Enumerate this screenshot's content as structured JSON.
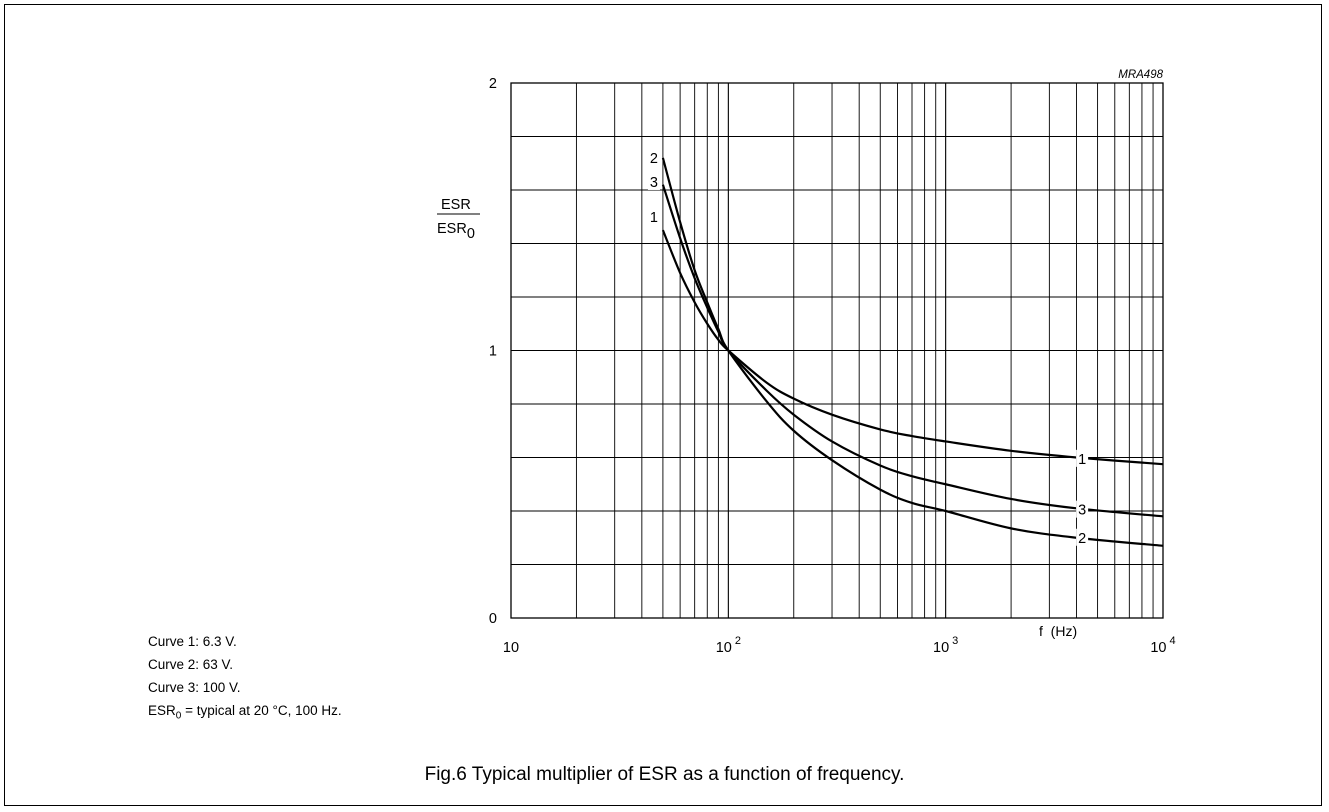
{
  "chart_data": {
    "type": "line",
    "figure_code": "MRA498",
    "title": "",
    "xlabel": "f  (Hz)",
    "ylabel": {
      "numerator": "ESR",
      "denominator": "ESR",
      "denominator_subscript": "0"
    },
    "x_scale": "log",
    "xlim": [
      10,
      10000
    ],
    "ylim": [
      0,
      2
    ],
    "grid": true,
    "x_ticks": [
      {
        "value": 10,
        "base": "10",
        "exp": ""
      },
      {
        "value": 100,
        "base": "10",
        "exp": "2"
      },
      {
        "value": 1000,
        "base": "10",
        "exp": "3"
      },
      {
        "value": 10000,
        "base": "10",
        "exp": "4"
      }
    ],
    "y_ticks": [
      {
        "value": 0,
        "label": "0"
      },
      {
        "value": 1,
        "label": "1"
      },
      {
        "value": 2,
        "label": "2"
      }
    ],
    "series": [
      {
        "name": "1",
        "x": [
          50,
          60,
          70,
          80,
          90,
          100,
          150,
          200,
          300,
          500,
          700,
          1000,
          2000,
          4000,
          10000
        ],
        "y": [
          1.45,
          1.29,
          1.18,
          1.1,
          1.04,
          1.0,
          0.88,
          0.82,
          0.76,
          0.705,
          0.68,
          0.66,
          0.625,
          0.6,
          0.575
        ],
        "label_positions": [
          {
            "x": 45,
            "y": 1.5
          },
          {
            "x": 4200,
            "y": 0.595
          }
        ]
      },
      {
        "name": "2",
        "x": [
          50,
          60,
          70,
          80,
          90,
          100,
          150,
          200,
          300,
          500,
          700,
          1000,
          2000,
          4000,
          10000
        ],
        "y": [
          1.72,
          1.48,
          1.3,
          1.18,
          1.08,
          1.0,
          0.81,
          0.7,
          0.59,
          0.48,
          0.43,
          0.4,
          0.335,
          0.3,
          0.27
        ],
        "label_positions": [
          {
            "x": 45,
            "y": 1.72
          },
          {
            "x": 4200,
            "y": 0.3
          }
        ]
      },
      {
        "name": "3",
        "x": [
          50,
          60,
          70,
          80,
          90,
          100,
          150,
          200,
          300,
          500,
          700,
          1000,
          2000,
          4000,
          10000
        ],
        "y": [
          1.62,
          1.42,
          1.27,
          1.16,
          1.07,
          1.0,
          0.85,
          0.76,
          0.66,
          0.57,
          0.53,
          0.5,
          0.445,
          0.41,
          0.38
        ],
        "label_positions": [
          {
            "x": 45,
            "y": 1.63
          },
          {
            "x": 4200,
            "y": 0.405
          }
        ]
      }
    ]
  },
  "notes": {
    "line1": "Curve 1: 6.3 V.",
    "line2": "Curve 2: 63 V.",
    "line3": "Curve 3: 100 V.",
    "line4_prefix": "ESR",
    "line4_sub": "0",
    "line4_suffix": " = typical at 20 °C, 100 Hz."
  },
  "caption": "Fig.6  Typical multiplier of ESR as a function of frequency."
}
